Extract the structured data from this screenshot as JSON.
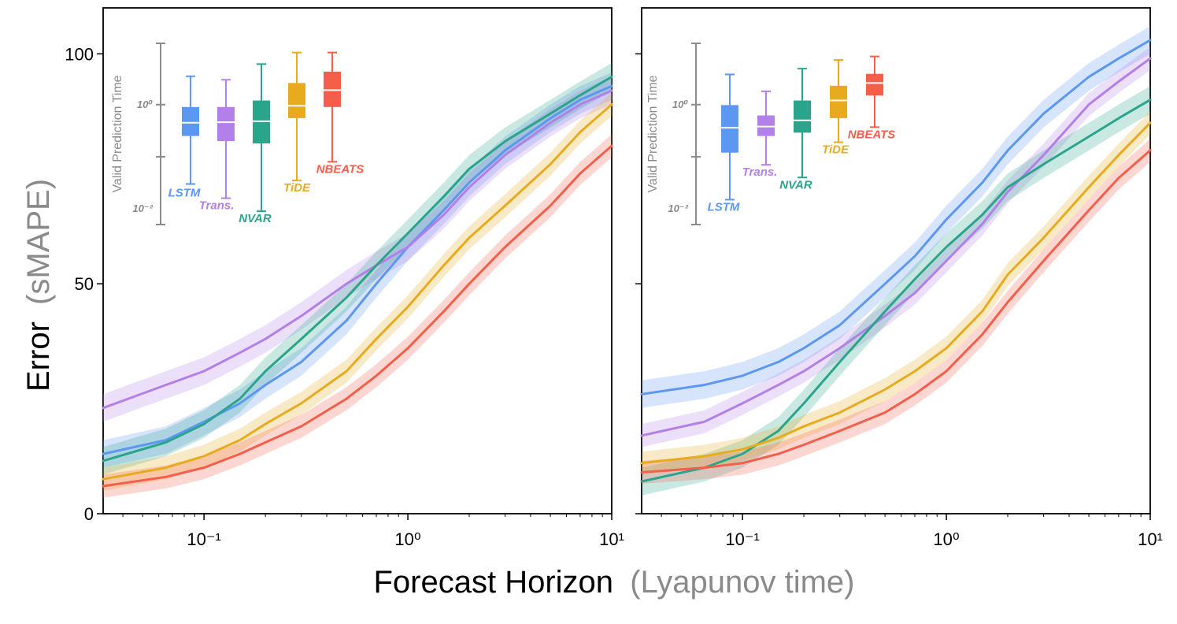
{
  "figure": {
    "ylabel_main": "Error",
    "ylabel_paren": "(sMAPE)",
    "xlabel_main": "Forecast Horizon",
    "xlabel_paren": "(Lyapunov time)"
  },
  "colors": {
    "LSTM": "#5c97f2",
    "Trans.": "#b37fe8",
    "NVAR": "#2aa58c",
    "TiDE": "#e8ab1e",
    "NBEATS": "#f55f4a",
    "axis_gray": "#8a8a8a"
  },
  "chart_data": [
    {
      "type": "line",
      "panel": "left",
      "xscale": "log",
      "xlim": [
        0.032,
        10
      ],
      "ylim": [
        0,
        110
      ],
      "x_ticks": [
        {
          "value": 0.1,
          "label": "10⁻¹"
        },
        {
          "value": 1,
          "label": "10⁰"
        },
        {
          "value": 10,
          "label": "10¹"
        }
      ],
      "y_ticks": [
        {
          "value": 0,
          "label": "0"
        },
        {
          "value": 50,
          "label": "50"
        },
        {
          "value": 100,
          "label": "100"
        }
      ],
      "x": [
        0.032,
        0.065,
        0.1,
        0.15,
        0.2,
        0.3,
        0.5,
        0.7,
        1.0,
        1.5,
        2.0,
        3.0,
        5.0,
        7.0,
        10.0
      ],
      "series": [
        {
          "name": "LSTM",
          "values": [
            13,
            16,
            20,
            24,
            28,
            33,
            42,
            50,
            58,
            66,
            72,
            79,
            86,
            90,
            93
          ],
          "band": 3
        },
        {
          "name": "Trans.",
          "values": [
            23,
            28,
            31,
            35,
            38,
            43,
            50,
            54,
            58,
            65,
            71,
            78,
            85,
            89,
            92
          ],
          "band": 3
        },
        {
          "name": "NVAR",
          "values": [
            11.5,
            15.5,
            19.5,
            25,
            31,
            38,
            47,
            54,
            61,
            69,
            75,
            81,
            87,
            91,
            95
          ],
          "band": 3
        },
        {
          "name": "TiDE",
          "values": [
            7.5,
            10,
            12.5,
            16,
            19.5,
            24,
            31,
            38,
            45,
            54,
            60,
            67,
            76,
            83,
            89
          ],
          "band": 2.5
        },
        {
          "name": "NBEATS",
          "values": [
            6,
            8,
            10,
            13,
            15.5,
            19,
            25,
            30,
            36,
            44,
            50,
            58,
            67,
            74,
            80
          ],
          "band": 2.5
        }
      ],
      "inset": {
        "title": "Valid Prediction Time",
        "yscale": "log",
        "tick_labels": [
          "10⁰",
          "10⁻²"
        ],
        "boxes": [
          {
            "name": "LSTM",
            "whisker_low": 0.03,
            "q1": 0.25,
            "median": 0.45,
            "q3": 0.9,
            "whisker_high": 3.5
          },
          {
            "name": "Trans.",
            "whisker_low": 0.016,
            "q1": 0.2,
            "median": 0.46,
            "q3": 0.9,
            "whisker_high": 3.0
          },
          {
            "name": "NVAR",
            "whisker_low": 0.009,
            "q1": 0.18,
            "median": 0.48,
            "q3": 1.2,
            "whisker_high": 6.0
          },
          {
            "name": "TiDE",
            "whisker_low": 0.035,
            "q1": 0.55,
            "median": 0.95,
            "q3": 2.6,
            "whisker_high": 10.0
          },
          {
            "name": "NBEATS",
            "whisker_low": 0.08,
            "q1": 0.9,
            "median": 1.9,
            "q3": 4.3,
            "whisker_high": 10.0
          }
        ]
      }
    },
    {
      "type": "line",
      "panel": "right",
      "xscale": "log",
      "xlim": [
        0.032,
        10
      ],
      "ylim": [
        0,
        110
      ],
      "x_ticks": [
        {
          "value": 0.1,
          "label": "10⁻¹"
        },
        {
          "value": 1,
          "label": "10⁰"
        },
        {
          "value": 10,
          "label": "10¹"
        }
      ],
      "y_ticks": [
        {
          "value": 0,
          "label": ""
        },
        {
          "value": 50,
          "label": ""
        },
        {
          "value": 100,
          "label": ""
        }
      ],
      "x": [
        0.032,
        0.065,
        0.1,
        0.15,
        0.2,
        0.3,
        0.5,
        0.7,
        1.0,
        1.5,
        2.0,
        3.0,
        5.0,
        7.0,
        10.0
      ],
      "series": [
        {
          "name": "LSTM",
          "values": [
            26,
            28,
            30,
            33,
            36,
            41,
            50,
            56,
            64,
            72,
            79,
            87,
            95,
            99,
            103
          ],
          "band": 3
        },
        {
          "name": "Trans.",
          "values": [
            17,
            20,
            24,
            28,
            31,
            36,
            43,
            48,
            55,
            63,
            70,
            78,
            89,
            94,
            99
          ],
          "band": 2.5
        },
        {
          "name": "NVAR",
          "values": [
            7,
            10,
            13,
            18,
            24,
            33,
            44,
            51,
            58,
            65,
            71,
            76,
            82,
            86,
            90
          ],
          "band": 3
        },
        {
          "name": "TiDE",
          "values": [
            11,
            12.5,
            14,
            16.5,
            19,
            22,
            27,
            31,
            36,
            44,
            52,
            60,
            71,
            78,
            85
          ],
          "band": 2.5
        },
        {
          "name": "NBEATS",
          "values": [
            9,
            10,
            11,
            13,
            15,
            18,
            22,
            26,
            31,
            39,
            46,
            55,
            66,
            73,
            79
          ],
          "band": 2.5
        }
      ],
      "inset": {
        "title": "Valid Prediction Time",
        "yscale": "log",
        "tick_labels": [
          "10⁰",
          "10⁻²"
        ],
        "boxes": [
          {
            "name": "LSTM",
            "whisker_low": 0.015,
            "q1": 0.12,
            "median": 0.36,
            "q3": 0.98,
            "whisker_high": 3.8
          },
          {
            "name": "Trans.",
            "whisker_low": 0.07,
            "q1": 0.25,
            "median": 0.38,
            "q3": 0.62,
            "whisker_high": 1.8
          },
          {
            "name": "NVAR",
            "whisker_low": 0.04,
            "q1": 0.29,
            "median": 0.5,
            "q3": 1.2,
            "whisker_high": 4.9
          },
          {
            "name": "TiDE",
            "whisker_low": 0.19,
            "q1": 0.55,
            "median": 1.2,
            "q3": 2.3,
            "whisker_high": 7.2
          },
          {
            "name": "NBEATS",
            "whisker_low": 0.37,
            "q1": 1.5,
            "median": 2.6,
            "q3": 3.9,
            "whisker_high": 8.4
          }
        ]
      }
    }
  ]
}
